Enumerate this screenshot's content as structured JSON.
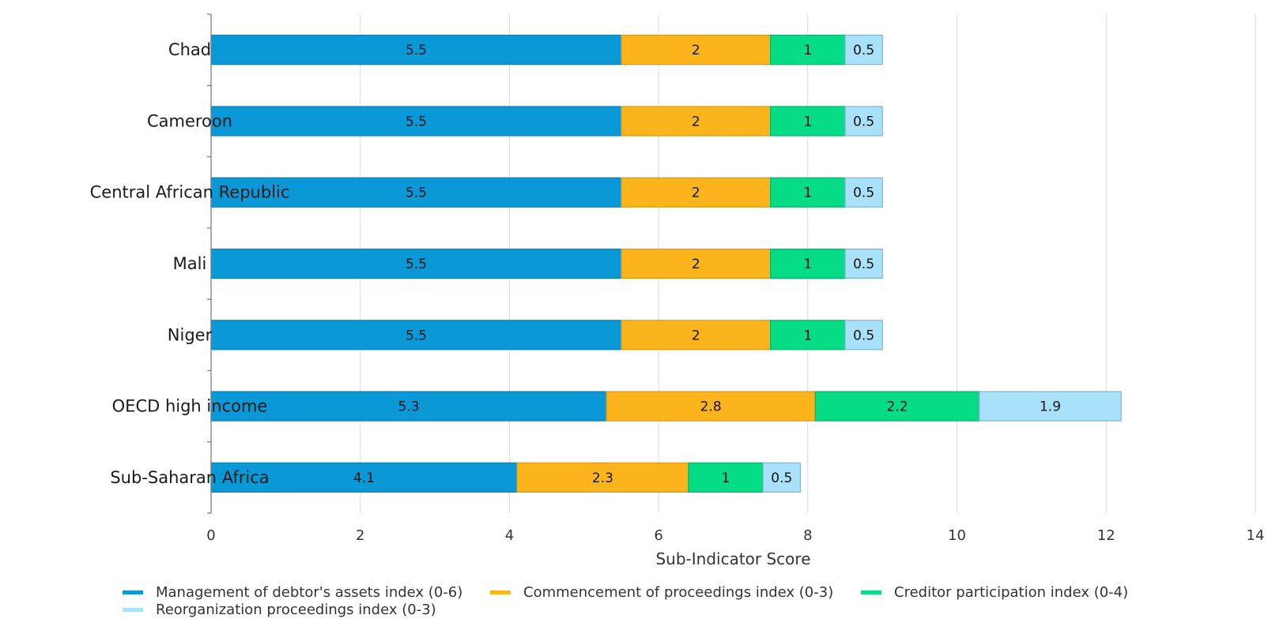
{
  "chart_data": {
    "type": "bar",
    "orientation": "horizontal",
    "stacked": true,
    "title": "",
    "xlabel": "Sub-Indicator Score",
    "ylabel": "",
    "xlim": [
      0,
      14
    ],
    "xticks": [
      0,
      2,
      4,
      6,
      8,
      10,
      12,
      14
    ],
    "grid": true,
    "legend_position": "bottom",
    "categories": [
      "Chad",
      "Cameroon",
      "Central African Republic",
      "Mali",
      "Niger",
      "OECD high income",
      "Sub-Saharan Africa"
    ],
    "series": [
      {
        "name": "Management of debtor's assets index (0-6)",
        "color": "#0a99d6",
        "border": "#0a7fb5",
        "values": [
          5.5,
          5.5,
          5.5,
          5.5,
          5.5,
          5.3,
          4.1
        ]
      },
      {
        "name": "Commencement of proceedings index (0-3)",
        "color": "#fbb41c",
        "border": "#d89a14",
        "values": [
          2,
          2,
          2,
          2,
          2,
          2.8,
          2.3
        ]
      },
      {
        "name": "Creditor participation index (0-4)",
        "color": "#06db85",
        "border": "#06b46e",
        "values": [
          1,
          1,
          1,
          1,
          1,
          2.2,
          1
        ]
      },
      {
        "name": "Reorganization proceedings index (0-3)",
        "color": "#a8e1f9",
        "border": "#7fb4cc",
        "values": [
          0.5,
          0.5,
          0.5,
          0.5,
          0.5,
          1.9,
          0.5
        ]
      }
    ]
  }
}
